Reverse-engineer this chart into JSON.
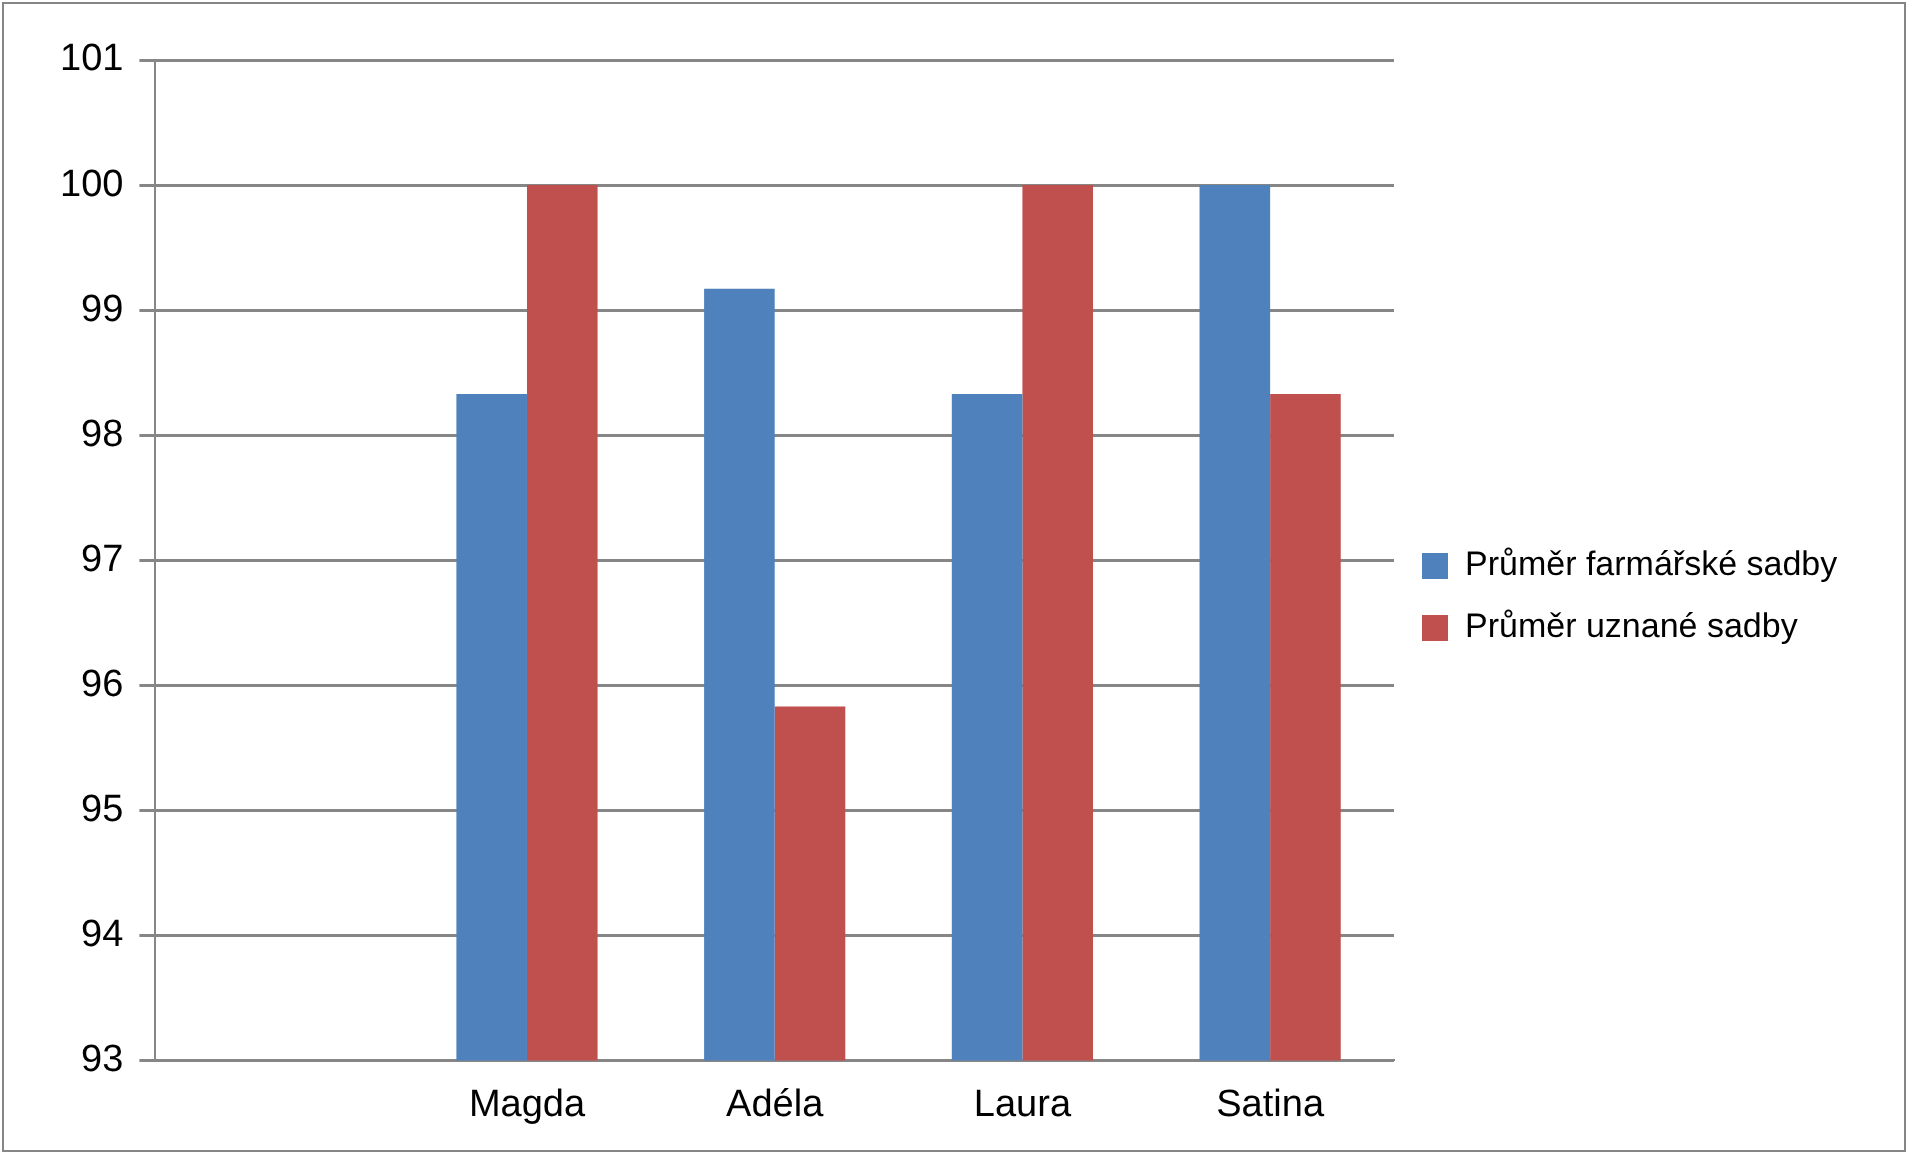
{
  "chart_data": {
    "type": "bar",
    "categories": [
      null,
      "Magda",
      "Adéla",
      "Laura",
      "Satina"
    ],
    "series": [
      {
        "name": "Průměr farmářské sadby",
        "color": "#4f81bd",
        "values": [
          null,
          98.33,
          99.17,
          98.33,
          100
        ]
      },
      {
        "name": "Průměr uznané sadby",
        "color": "#c0504d",
        "values": [
          null,
          100,
          95.83,
          100,
          98.33
        ]
      }
    ],
    "ylim": [
      93,
      101
    ],
    "yticks": [
      93,
      94,
      95,
      96,
      97,
      98,
      99,
      100,
      101
    ],
    "grid": "y",
    "legend": "right"
  }
}
